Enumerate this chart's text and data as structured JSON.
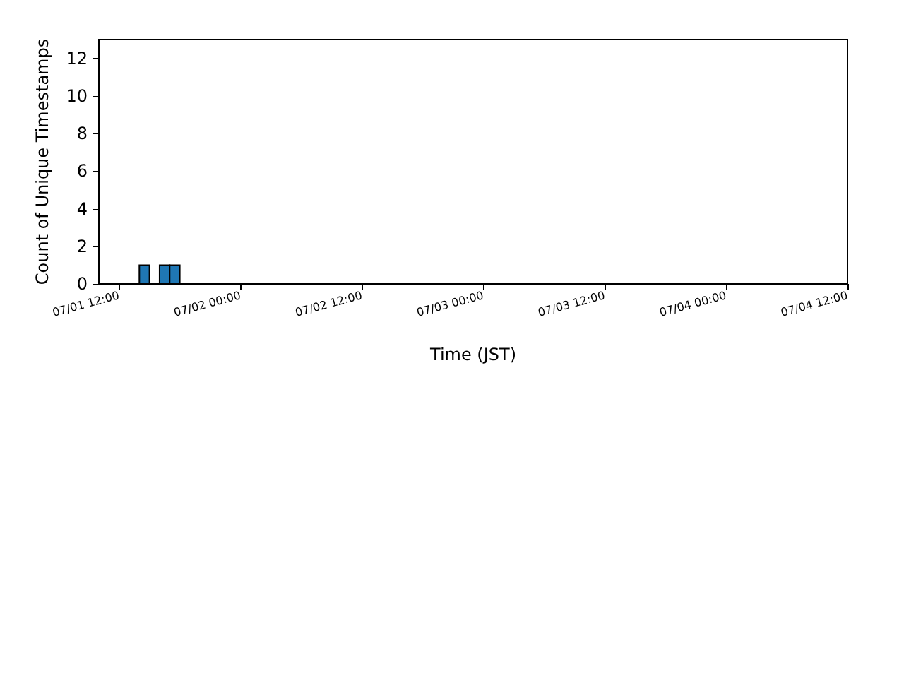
{
  "chart_data": {
    "type": "histogram",
    "xlabel": "Time (JST)",
    "ylabel": "Count of Unique Timestamps",
    "bins": [
      "--07-01T12:00",
      "--07-01T13:00",
      "--07-01T14:00",
      "--07-01T15:00",
      "--07-01T16:00",
      "--07-01T17:00",
      "--07-01T18:00",
      "--07-01T19:00",
      "--07-01T20:00",
      "--07-01T21:00",
      "--07-01T22:00",
      "--07-01T23:00",
      "--07-02T00:00",
      "--07-02T01:00",
      "--07-02T02:00",
      "--07-02T03:00",
      "--07-02T04:00",
      "--07-02T05:00",
      "--07-02T06:00",
      "--07-02T07:00",
      "--07-02T08:00",
      "--07-02T09:00",
      "--07-02T10:00",
      "--07-02T11:00",
      "--07-02T12:00",
      "--07-02T13:00",
      "--07-02T14:00",
      "--07-02T15:00",
      "--07-02T16:00",
      "--07-02T17:00",
      "--07-02T18:00",
      "--07-02T19:00",
      "--07-02T20:00",
      "--07-02T21:00",
      "--07-02T22:00",
      "--07-02T23:00",
      "--07-03T00:00",
      "--07-03T01:00",
      "--07-03T02:00",
      "--07-03T03:00",
      "--07-03T04:00",
      "--07-03T05:00",
      "--07-03T06:00",
      "--07-03T07:00",
      "--07-03T08:00",
      "--07-03T09:00",
      "--07-03T10:00",
      "--07-03T11:00",
      "--07-03T12:00",
      "--07-03T13:00",
      "--07-03T14:00",
      "--07-03T15:00",
      "--07-03T16:00",
      "--07-03T17:00",
      "--07-03T18:00",
      "--07-03T19:00",
      "--07-03T20:00",
      "--07-03T21:00",
      "--07-03T22:00",
      "--07-03T23:00",
      "--07-04T00:00",
      "--07-04T01:00",
      "--07-04T02:00",
      "--07-04T03:00",
      "--07-04T04:00",
      "--07-04T05:00",
      "--07-04T06:00",
      "--07-04T07:00",
      "--07-04T08:00",
      "--07-04T09:00",
      "--07-04T10:00"
    ],
    "values": [
      0,
      0,
      1,
      0,
      1,
      1,
      0,
      0,
      0,
      0,
      0,
      0,
      0,
      0,
      0,
      0,
      0,
      0,
      0,
      0,
      0,
      0,
      0,
      0,
      0,
      0,
      0,
      0,
      0,
      0,
      0,
      0,
      0,
      0,
      0,
      0,
      0,
      0,
      0,
      0,
      0,
      0,
      0,
      0,
      0,
      0,
      0,
      0,
      0,
      0,
      0,
      0,
      0,
      0,
      0,
      0,
      0,
      0,
      0,
      0,
      0,
      0,
      0,
      0,
      0,
      0,
      0,
      0,
      0,
      0
    ],
    "color": "#1f77b4",
    "xlim": [
      "--07-01T10:00",
      "--07-04T12:00"
    ],
    "xticks": [
      {
        "value": "--07-01T12:00",
        "label": "07/01 12:00"
      },
      {
        "value": "--07-02T00:00",
        "label": "07/02 00:00"
      },
      {
        "value": "--07-02T12:00",
        "label": "07/02 12:00"
      },
      {
        "value": "--07-03T00:00",
        "label": "07/03 00:00"
      },
      {
        "value": "--07-03T12:00",
        "label": "07/03 12:00"
      },
      {
        "value": "--07-04T00:00",
        "label": "07/04 00:00"
      },
      {
        "value": "--07-04T12:00",
        "label": "07/04 12:00"
      }
    ],
    "ylim": [
      0,
      13
    ],
    "yticks": [
      0,
      2,
      4,
      6,
      8,
      10,
      12
    ]
  }
}
